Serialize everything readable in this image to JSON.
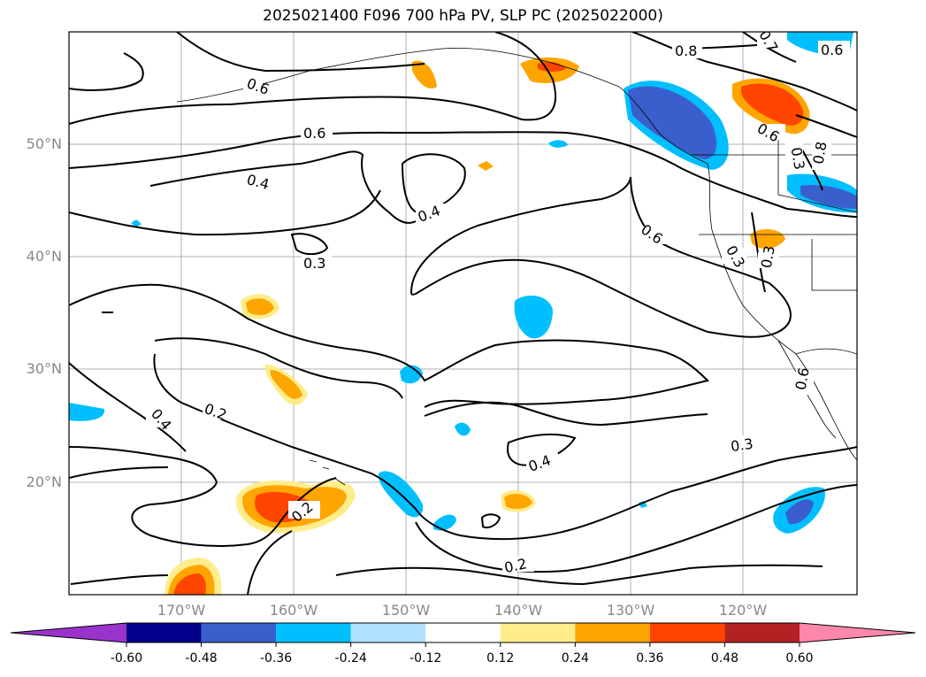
{
  "title": "2025021400 F096 700 hPa PV, SLP PC (2025022000)",
  "lon_labels": [
    "170°W",
    "160°W",
    "150°W",
    "140°W",
    "130°W",
    "120°W"
  ],
  "lat_labels": [
    "50°N",
    "40°N",
    "30°N",
    "20°N"
  ],
  "contour_labels": [
    "0.8",
    "0.7",
    "0.6",
    "0.6",
    "0.6",
    "0.6",
    "0.6",
    "0.4",
    "0.4",
    "0.4",
    "0.4",
    "0.3",
    "0.3",
    "0.3",
    "0.3",
    "0.2",
    "0.2",
    "0.2",
    "0.8",
    "0.3",
    "0.6"
  ],
  "colorbar": {
    "ticks": [
      "-0.60",
      "-0.48",
      "-0.36",
      "-0.24",
      "-0.12",
      "0.12",
      "0.24",
      "0.36",
      "0.48",
      "0.60"
    ],
    "colors": [
      "#9933cc",
      "#00008b",
      "#3a5fcd",
      "#00bfff",
      "#b0e2ff",
      "#ffffff",
      "#ffec8b",
      "#ffa500",
      "#ff4500",
      "#b22222",
      "#ff88aa"
    ]
  }
}
